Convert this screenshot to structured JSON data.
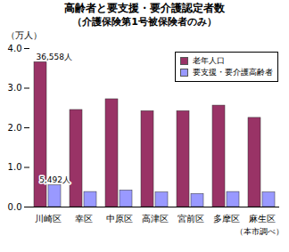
{
  "chart_data": {
    "type": "bar",
    "title": "高齢者と要支援・要介護認定者数",
    "subtitle": "（介護保険第1号被保険者のみ）",
    "y_label": "（万人）",
    "source": "（本市調べ）",
    "categories": [
      "川崎区",
      "幸区",
      "中原区",
      "高津区",
      "宮前区",
      "多摩区",
      "麻生区"
    ],
    "series": [
      {
        "name": "老年人口",
        "color": "#993366",
        "values": [
          3.6558,
          2.45,
          2.72,
          2.42,
          2.42,
          2.56,
          2.25
        ]
      },
      {
        "name": "要支援・要介護高齢者",
        "color": "#9999ff",
        "values": [
          0.5492,
          0.38,
          0.42,
          0.37,
          0.33,
          0.38,
          0.37
        ]
      }
    ],
    "ylim": [
      0,
      4
    ],
    "yticks": [
      0,
      1,
      2,
      3,
      4
    ],
    "grid": false,
    "legend": "top-right",
    "annotations": [
      {
        "category": "川崎区",
        "series": "老年人口",
        "value": 3.6558,
        "label": "36,558人"
      },
      {
        "category": "川崎区",
        "series": "要支援・要介護高齢者",
        "value": 0.5492,
        "label": "5,492人"
      }
    ]
  }
}
